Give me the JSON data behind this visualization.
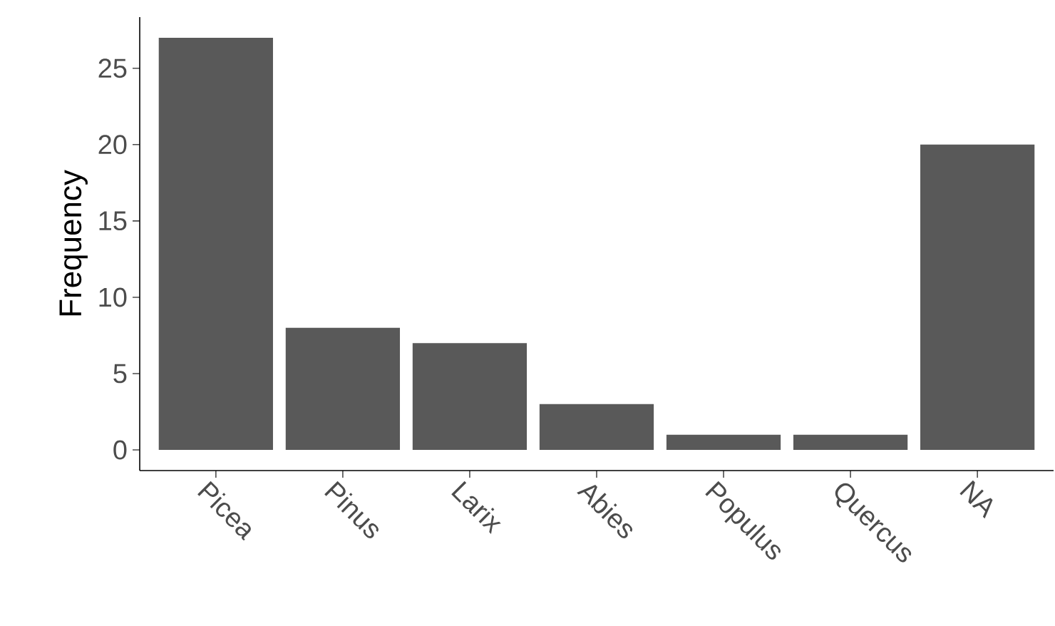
{
  "chart_data": {
    "type": "bar",
    "ylabel": "Frequency",
    "categories": [
      "Picea",
      "Pinus",
      "Larix",
      "Abies",
      "Populus",
      "Quercus",
      "NA"
    ],
    "values": [
      27,
      8,
      7,
      3,
      1,
      1,
      20
    ],
    "color": "#595959",
    "ylim": [
      -1.35,
      28.35
    ],
    "yticks": [
      0,
      5,
      10,
      15,
      20,
      25
    ]
  }
}
